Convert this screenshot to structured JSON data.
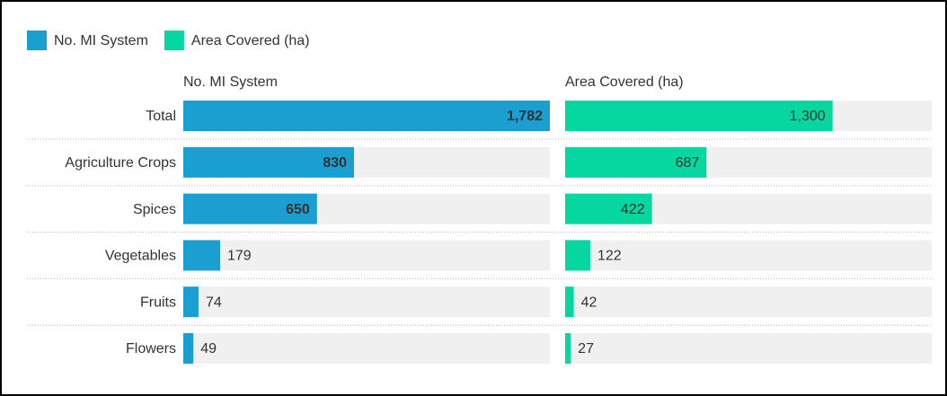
{
  "chart_data": {
    "type": "bar",
    "orientation": "horizontal",
    "layout": "small-multiples",
    "categories": [
      "Total",
      "Agriculture Crops",
      "Spices",
      "Vegetables",
      "Fruits",
      "Flowers"
    ],
    "xlim": [
      0,
      1782
    ],
    "legend": "top-left",
    "series": [
      {
        "name": "No. MI System",
        "color": "#1a9fd0",
        "values": [
          1782,
          830,
          650,
          179,
          74,
          49
        ],
        "value_labels": [
          "1,782",
          "830",
          "650",
          "179",
          "74",
          "49"
        ]
      },
      {
        "name": "Area Covered (ha)",
        "color": "#06d6a0",
        "values": [
          1300,
          687,
          422,
          122,
          42,
          27
        ],
        "value_labels": [
          "1,300",
          "687",
          "422",
          "122",
          "42",
          "27"
        ]
      }
    ]
  }
}
